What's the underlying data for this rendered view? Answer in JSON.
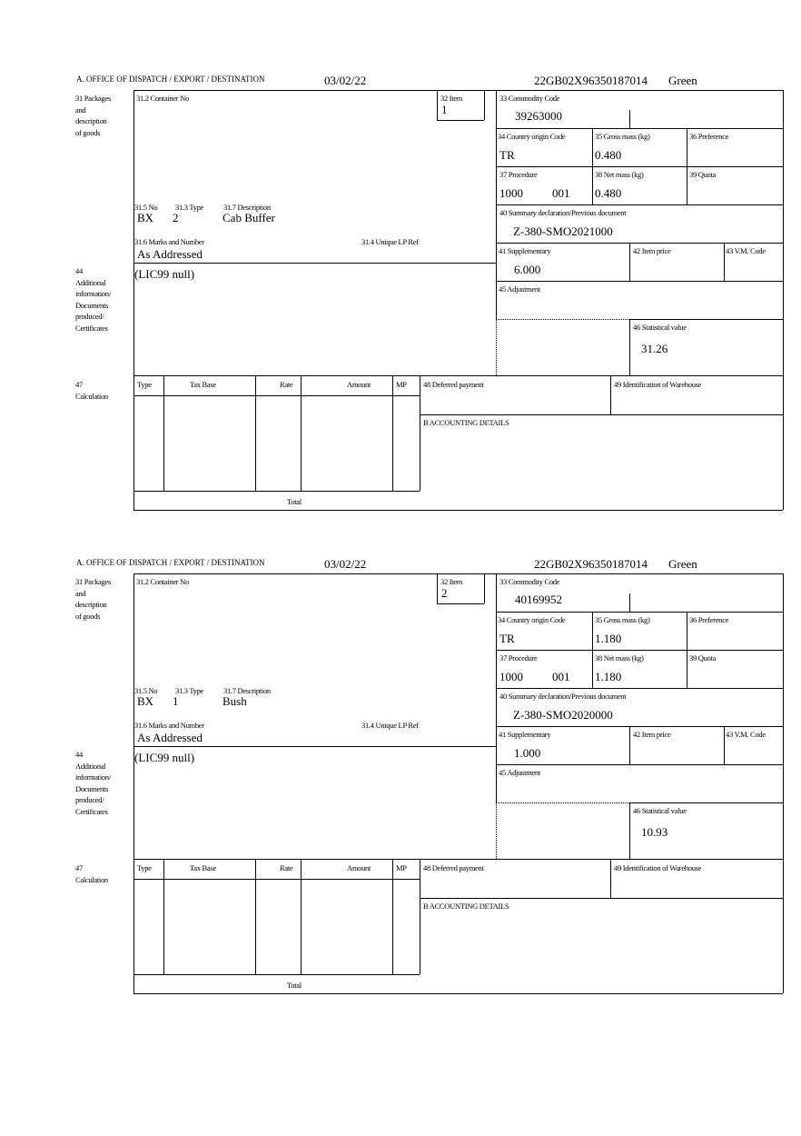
{
  "labels": {
    "office": "A. OFFICE OF DISPATCH / EXPORT / DESTINATION",
    "box31": [
      "31 Packages",
      "and",
      "description",
      "of goods"
    ],
    "container_no": "31.2 Container No",
    "item": "32 Item",
    "commodity_code": "33 Commodity Code",
    "country_origin": "34 Country origin Code",
    "gross_mass": "35 Gross mass (kg)",
    "preference": "36 Preference",
    "procedure": "37 Procedure",
    "net_mass": "38 Net mass (kg)",
    "quota": "39 Quota",
    "summary_decl": "40 Summary declaration/Previous document",
    "supplementary": "41 Supplementary",
    "item_price": "42 Item price",
    "vm_code": "43 V.M. Code",
    "adjustment": "45 Adjustment",
    "statistical_value": "46 Statistical value",
    "no": "31.5 No",
    "type": "31.3 Type",
    "description": "31.7 Description",
    "marks": "31.6 Marks and Number",
    "unique_lp": "31.4 Unique LP Ref",
    "box44": [
      "44",
      "Additional",
      "information/",
      "Documents",
      "produced/",
      "Certificates"
    ],
    "box47": [
      "47",
      "Calculation"
    ],
    "calc_cols": [
      "Type",
      "Tax Base",
      "Rate",
      "Amount",
      "MP"
    ],
    "total": "Total",
    "deferred": "48 Deferred payment",
    "warehouse": "49 Identification of Warehouse",
    "accounting": "B ACCOUNTING DETAILS"
  },
  "items": [
    {
      "date": "03/02/22",
      "reference": "22GB02X96350187014",
      "route": "Green",
      "item_no": "1",
      "commodity_code": "39263000",
      "country_origin": "TR",
      "gross_mass": "0.480",
      "procedure": "1000",
      "procedure_extra": "001",
      "net_mass": "0.480",
      "summary_decl": "Z-380-SMO2021000",
      "supplementary": "6.000",
      "statistical_value": "31.26",
      "no": "BX",
      "type": "2",
      "description": "Cab Buffer",
      "marks": "As Addressed",
      "additional_info": "(LIC99 null)"
    },
    {
      "date": "03/02/22",
      "reference": "22GB02X96350187014",
      "route": "Green",
      "item_no": "2",
      "commodity_code": "40169952",
      "country_origin": "TR",
      "gross_mass": "1.180",
      "procedure": "1000",
      "procedure_extra": "001",
      "net_mass": "1.180",
      "summary_decl": "Z-380-SMO2020000",
      "supplementary": "1.000",
      "statistical_value": "10.93",
      "no": "BX",
      "type": "1",
      "description": "Bush",
      "marks": "As Addressed",
      "additional_info": "(LIC99 null)"
    }
  ]
}
